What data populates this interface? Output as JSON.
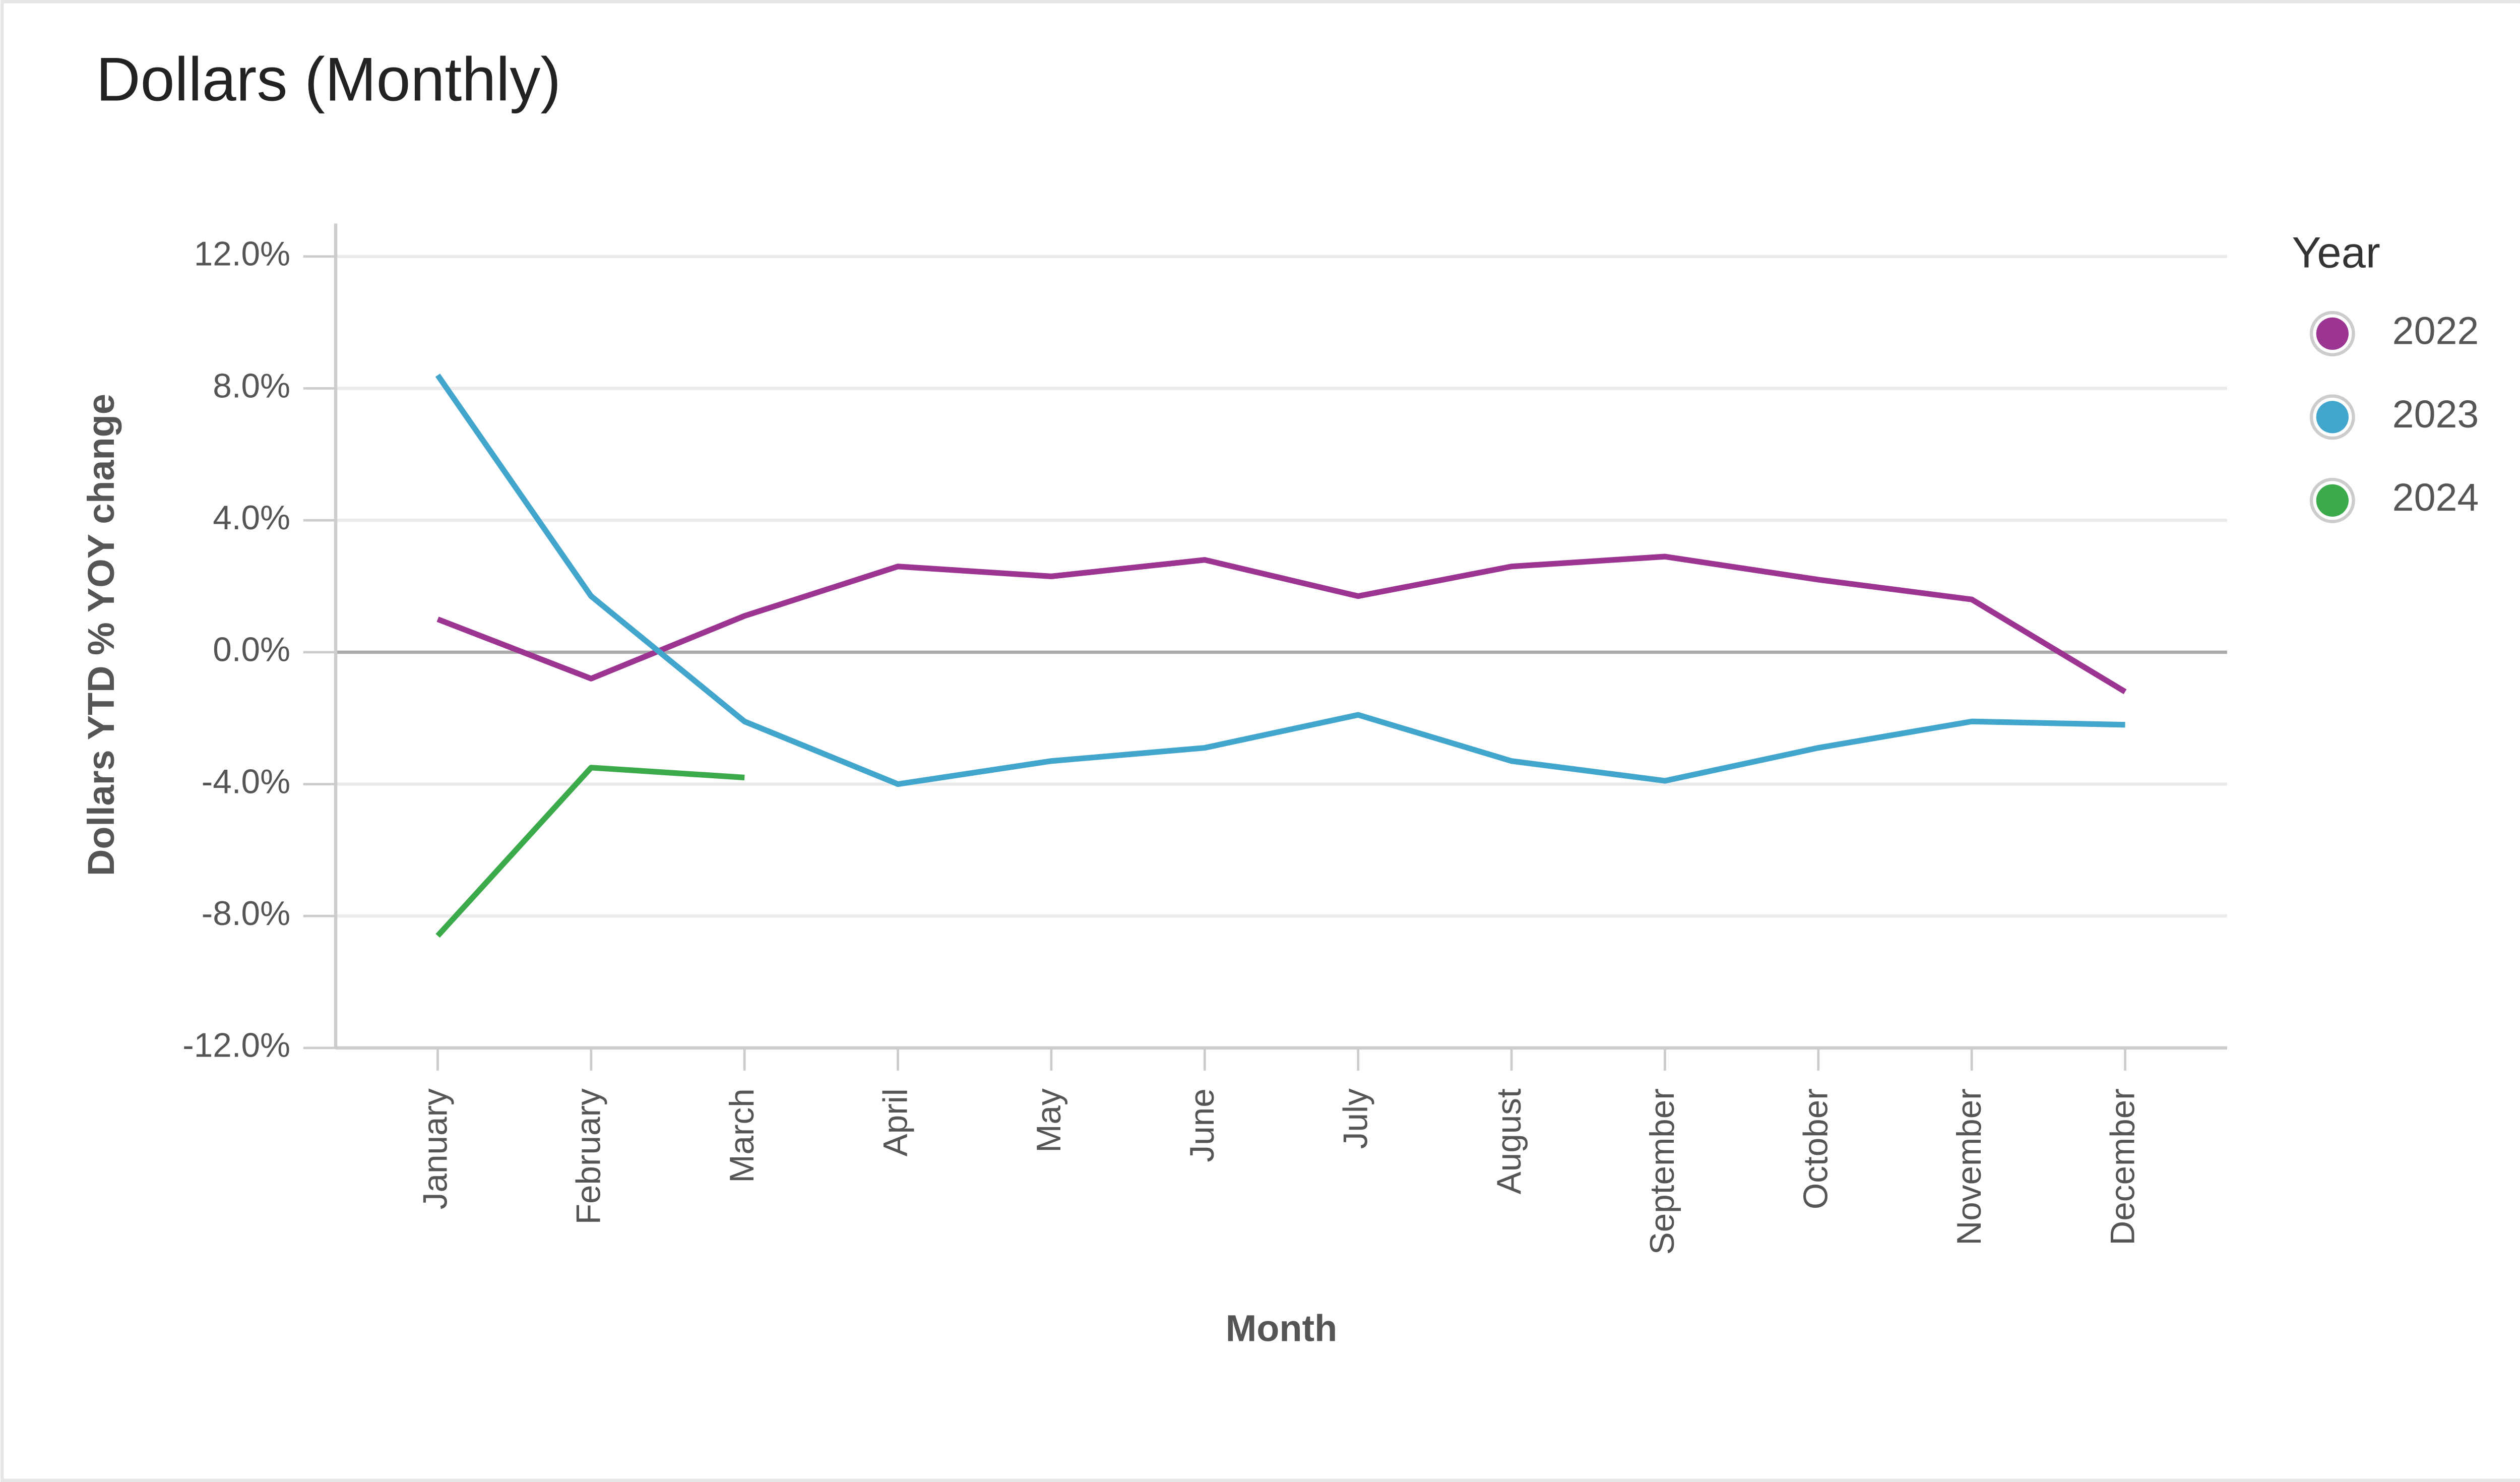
{
  "chart_data": {
    "type": "line",
    "title": "Dollars (Monthly)",
    "x_label": "Month",
    "y_label": "Dollars YTD % YOY change",
    "legend_title": "Year",
    "legend": "right",
    "grid": true,
    "categories": [
      "January",
      "February",
      "March",
      "April",
      "May",
      "June",
      "July",
      "August",
      "September",
      "October",
      "November",
      "December"
    ],
    "series": [
      {
        "name": "2022",
        "color": "#9c3592",
        "values": [
          1.0,
          -0.8,
          1.1,
          2.6,
          2.3,
          2.8,
          1.7,
          2.6,
          2.9,
          2.2,
          1.6,
          -1.2
        ]
      },
      {
        "name": "2023",
        "color": "#42a5cc",
        "values": [
          8.4,
          1.7,
          -2.1,
          -4.0,
          -3.3,
          -2.9,
          -1.9,
          -3.3,
          -3.9,
          -2.9,
          -2.1,
          -2.2
        ]
      },
      {
        "name": "2024",
        "color": "#3aaa4a",
        "values": [
          -8.6,
          -3.5,
          -3.8,
          null,
          null,
          null,
          null,
          null,
          null,
          null,
          null,
          null
        ]
      }
    ],
    "ylim": [
      -12,
      13
    ],
    "yticks": [
      {
        "value": 12,
        "label": "12.0%"
      },
      {
        "value": 8,
        "label": "8.0%"
      },
      {
        "value": 4,
        "label": "4.0%"
      },
      {
        "value": 0,
        "label": "0.0%"
      },
      {
        "value": -4,
        "label": "-4.0%"
      },
      {
        "value": -8,
        "label": "-8.0%"
      },
      {
        "value": -12,
        "label": "-12.0%"
      }
    ]
  }
}
